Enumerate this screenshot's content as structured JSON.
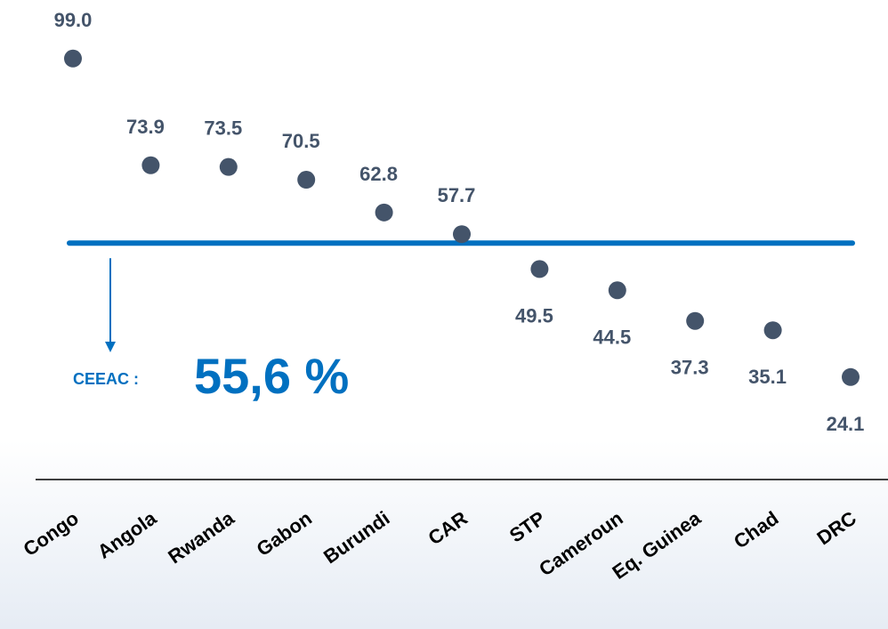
{
  "chart_data": {
    "type": "dot",
    "categories": [
      "Congo",
      "Angola",
      "Rwanda",
      "Gabon",
      "Burundi",
      "CAR",
      "STP",
      "Cameroun",
      "Eq. Guinea",
      "Chad",
      "DRC"
    ],
    "values": [
      99.0,
      73.9,
      73.5,
      70.5,
      62.8,
      57.7,
      49.5,
      44.5,
      37.3,
      35.1,
      24.1
    ],
    "value_labels": [
      "99.0",
      "73.9",
      "73.5",
      "70.5",
      "62.8",
      "57.7",
      "49.5",
      "44.5",
      "37.3",
      "35.1",
      "24.1"
    ],
    "color": "#44546a",
    "ylim": [
      0,
      110
    ],
    "reference_line": {
      "value": 55.6,
      "label": "CEEAC :",
      "value_label": "55,6 %",
      "color": "#0070c0"
    }
  }
}
